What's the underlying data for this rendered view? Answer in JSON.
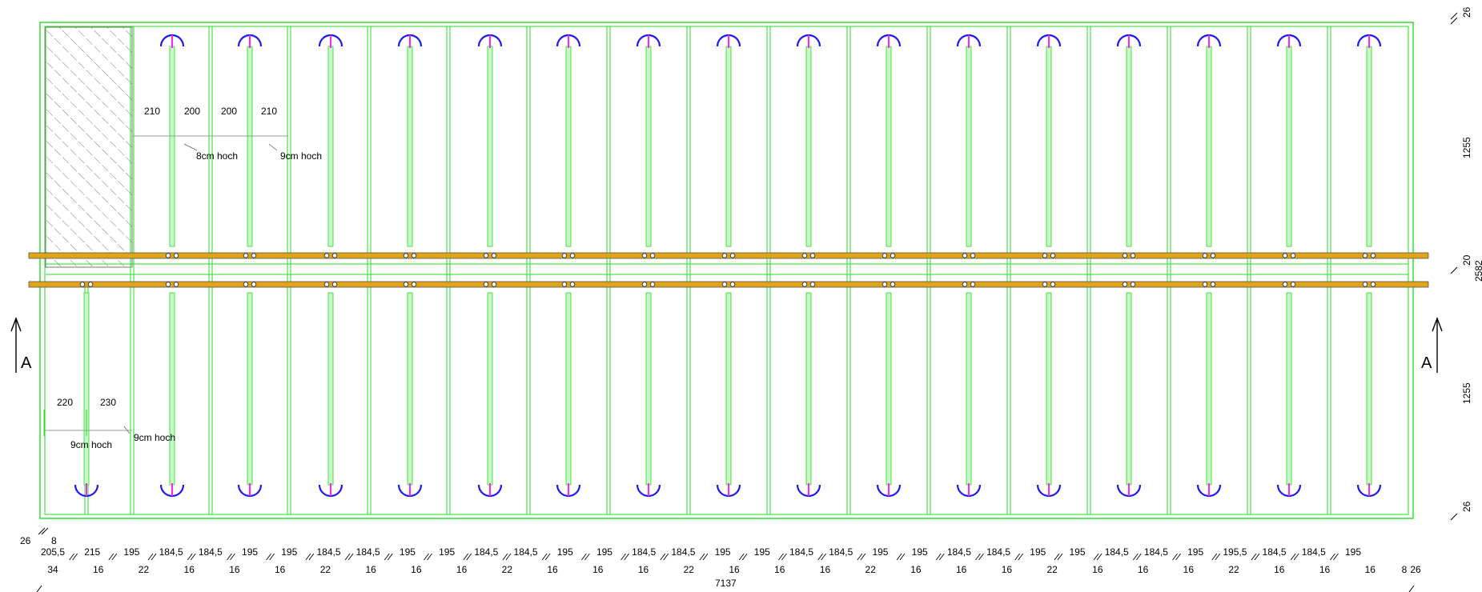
{
  "colors": {
    "wall": "#22dd22",
    "beam": "#e0a418",
    "beam_edge": "#555555",
    "arc": "#1a1aee",
    "tick": "#ff22ff",
    "hatch": "#444444",
    "text": "#000000"
  },
  "section_marker": "A",
  "top_labels": [
    "210",
    "200",
    "200",
    "210"
  ],
  "top_notes": [
    "8cm hoch",
    "9cm hoch"
  ],
  "bottom_labels": [
    "220",
    "230"
  ],
  "bottom_notes": [
    "9cm hoch",
    "9cm hoch"
  ],
  "right_dims": [
    "26",
    "1255",
    "20",
    "2582",
    "1255",
    "26"
  ],
  "left_small_dims": [
    "26",
    "8"
  ],
  "dims_row1": [
    "205,5",
    "215",
    "195",
    "184,5",
    "184,5",
    "195",
    "195",
    "184,5",
    "184,5",
    "195",
    "195",
    "184,5",
    "184,5",
    "195",
    "195",
    "184,5",
    "184,5",
    "195",
    "195",
    "184,5",
    "184,5",
    "195",
    "195",
    "184,5",
    "184,5",
    "195",
    "195",
    "184,5",
    "184,5",
    "195",
    "195,5",
    "184,5",
    "184,5",
    "195"
  ],
  "dims_row2": [
    "34",
    "16",
    "22",
    "16",
    "16",
    "16",
    "22",
    "16",
    "16",
    "16",
    "22",
    "16",
    "16",
    "16",
    "22",
    "16",
    "16",
    "16",
    "22",
    "16",
    "16",
    "16",
    "22",
    "16",
    "16",
    "16",
    "22",
    "16",
    "16",
    "16",
    "26"
  ],
  "dims_row2_extra": "8",
  "total_length": "7137"
}
